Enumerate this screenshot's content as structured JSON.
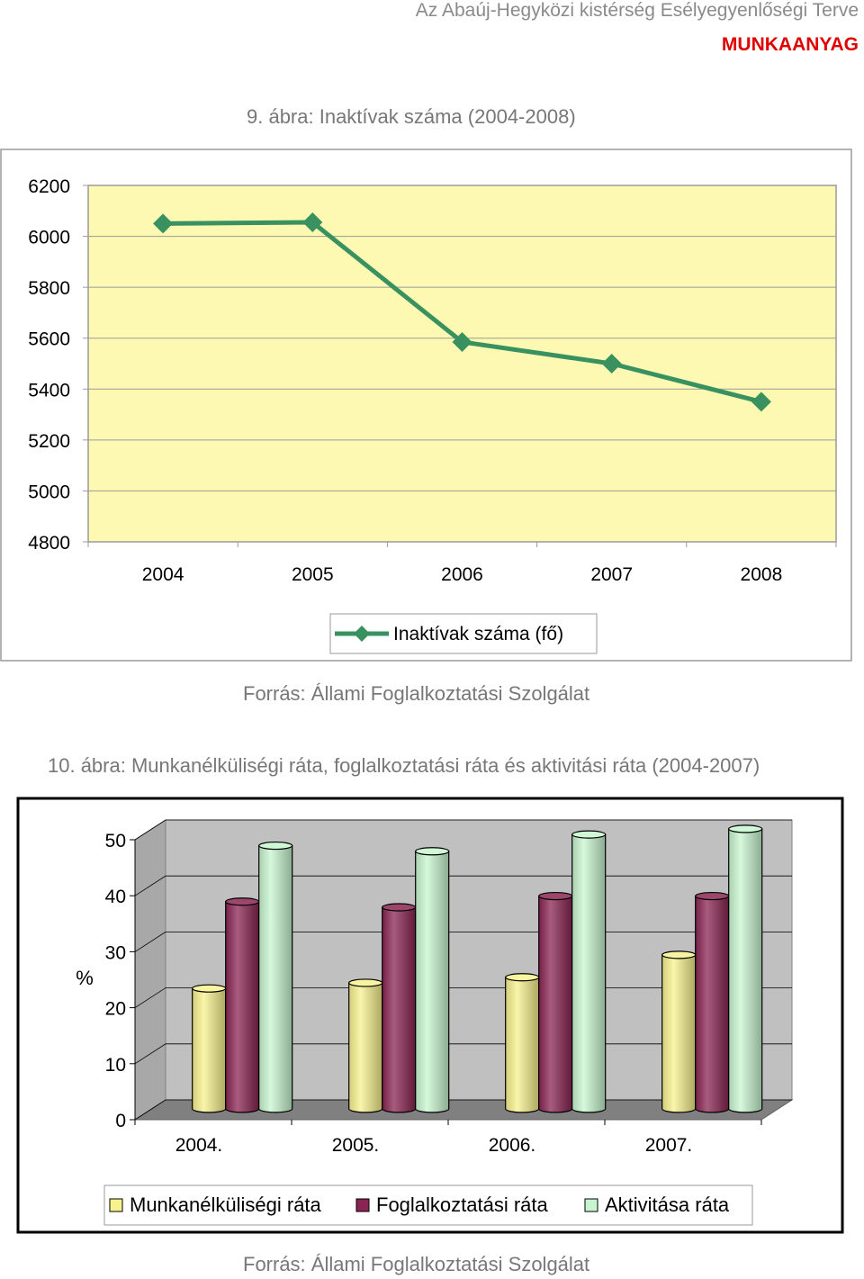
{
  "header": {
    "document_title": "Az Abaúj-Hegyközi kistérség Esélyegyenlőségi Terve",
    "status": "MUNKAANYAG"
  },
  "figure1": {
    "caption": "9. ábra: Inaktívak száma (2004-2008)",
    "source": "Forrás: Állami Foglalkoztatási Szolgálat"
  },
  "figure2": {
    "caption": "10. ábra: Munkanélküliségi ráta, foglalkoztatási ráta és aktivitási ráta (2004-2007)",
    "source": "Forrás: Állami Foglalkoztatási Szolgálat"
  },
  "colors": {
    "line": "#3a9160",
    "plot_bg": "#fdf9b3",
    "unemployment": "#f7f28e",
    "employment": "#8a2552",
    "activity": "#c8f5cf",
    "chart2_wall": "#c0c0c0",
    "chart2_floor": "#808080"
  },
  "chart_data": [
    {
      "type": "line",
      "categories": [
        "2004",
        "2005",
        "2006",
        "2007",
        "2008"
      ],
      "series": [
        {
          "name": "Inaktívak száma (fő)",
          "values": [
            6050,
            6055,
            5585,
            5500,
            5350
          ]
        }
      ],
      "ylim": [
        4800,
        6200
      ],
      "yticks": [
        "6200",
        "6000",
        "5800",
        "5600",
        "5400",
        "5200",
        "5000",
        "4800"
      ],
      "grid": true,
      "legend": "bottom",
      "marker": "diamond"
    },
    {
      "type": "bar",
      "style": "3d-cylinder",
      "categories": [
        "2004.",
        "2005.",
        "2006.",
        "2007."
      ],
      "series": [
        {
          "name": "Munkanélküliségi ráta",
          "values": [
            21.5,
            22.5,
            23.5,
            27.5
          ]
        },
        {
          "name": "Foglalkoztatási ráta",
          "values": [
            37,
            36,
            38,
            38
          ]
        },
        {
          "name": "Aktivitása ráta",
          "values": [
            47,
            46,
            49,
            50
          ]
        }
      ],
      "ylabel": "%",
      "ylim": [
        0,
        50
      ],
      "yticks": [
        "50",
        "40",
        "30",
        "20",
        "10",
        "0"
      ],
      "grid": true,
      "legend": "bottom"
    }
  ]
}
